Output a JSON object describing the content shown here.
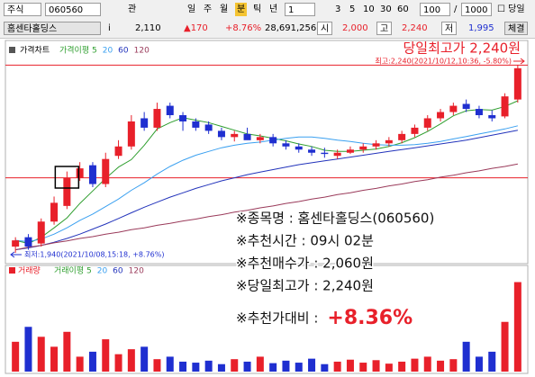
{
  "toolbar": {
    "market": "주식",
    "code": "060560",
    "link": "관",
    "periods": [
      "일",
      "주",
      "월",
      "분",
      "틱",
      "년"
    ],
    "unit": "1",
    "intervals": [
      "3",
      "5",
      "10",
      "30",
      "60"
    ],
    "count": "100",
    "sep": "/",
    "total": "1000",
    "today": "당일"
  },
  "quote": {
    "name": "홈센타홀딩스",
    "info": "i",
    "price": "2,110",
    "change": "▲170",
    "rate": "+8.76%",
    "volume": "28,691,256",
    "open_label": "시",
    "open": "2,000",
    "high_label": "고",
    "high": "2,240",
    "low_label": "저",
    "low": "1,995",
    "tab": "체결"
  },
  "chart_data": [
    {
      "type": "candlestick",
      "title": "가격차트",
      "up_color": "#e8202a",
      "down_color": "#1f2fd0",
      "ylim": [
        1930,
        2275
      ],
      "reference_lines": [
        2240,
        2060
      ],
      "reference_color": "#e8202a",
      "high_label": "당일최고가 2,240원",
      "high_note": "최고:2,240(2021/10/12,10:36, -5.80%)",
      "low_note": "최저:1,940(2021/10/08,15:18, +8.76%)",
      "open": [
        1950,
        1965,
        1955,
        1990,
        2015,
        2060,
        2080,
        2050,
        2095,
        2110,
        2155,
        2140,
        2175,
        2160,
        2150,
        2145,
        2135,
        2125,
        2130,
        2120,
        2125,
        2115,
        2110,
        2105,
        2100,
        2095,
        2100,
        2105,
        2110,
        2115,
        2120,
        2130,
        2140,
        2155,
        2165,
        2178,
        2170,
        2160,
        2158,
        2185
      ],
      "high": [
        1965,
        1970,
        1995,
        2030,
        2070,
        2085,
        2085,
        2100,
        2120,
        2160,
        2165,
        2180,
        2180,
        2165,
        2155,
        2150,
        2140,
        2135,
        2140,
        2130,
        2130,
        2120,
        2115,
        2110,
        2108,
        2105,
        2110,
        2115,
        2120,
        2125,
        2135,
        2145,
        2160,
        2170,
        2180,
        2185,
        2175,
        2168,
        2195,
        2240
      ],
      "low": [
        1940,
        1945,
        1950,
        1985,
        2010,
        2055,
        2045,
        2045,
        2090,
        2105,
        2135,
        2135,
        2155,
        2135,
        2135,
        2130,
        2120,
        2118,
        2122,
        2115,
        2110,
        2105,
        2100,
        2095,
        2092,
        2090,
        2098,
        2100,
        2105,
        2110,
        2115,
        2125,
        2135,
        2150,
        2160,
        2165,
        2155,
        2150,
        2155,
        2180
      ],
      "close": [
        1960,
        1950,
        1990,
        2020,
        2060,
        2075,
        2050,
        2090,
        2110,
        2150,
        2140,
        2170,
        2160,
        2150,
        2140,
        2135,
        2125,
        2130,
        2120,
        2125,
        2115,
        2110,
        2105,
        2100,
        2098,
        2100,
        2105,
        2110,
        2115,
        2120,
        2130,
        2140,
        2155,
        2165,
        2175,
        2170,
        2160,
        2155,
        2190,
        2235
      ],
      "series": [
        {
          "name": "가격이평 5",
          "color": "#2e9e2e",
          "values": [
            1960,
            1955,
            1965,
            1980,
            1996,
            2019,
            2039,
            2059,
            2077,
            2089,
            2112,
            2138,
            2148,
            2156,
            2152,
            2148,
            2142,
            2136,
            2130,
            2127,
            2123,
            2119,
            2114,
            2110,
            2104,
            2102,
            2102,
            2104,
            2106,
            2110,
            2116,
            2124,
            2134,
            2146,
            2159,
            2167,
            2169,
            2168,
            2174,
            2183
          ]
        },
        {
          "name": "20",
          "color": "#3aa0f0",
          "values": [
            1960,
            1958,
            1962,
            1970,
            1980,
            1992,
            2002,
            2014,
            2026,
            2040,
            2052,
            2066,
            2078,
            2088,
            2096,
            2102,
            2108,
            2112,
            2115,
            2117,
            2120,
            2123,
            2125,
            2125,
            2123,
            2120,
            2118,
            2115,
            2113,
            2112,
            2112,
            2113,
            2115,
            2118,
            2122,
            2126,
            2130,
            2134,
            2138,
            2143
          ]
        },
        {
          "name": "60",
          "color": "#2233bb",
          "values": [
            1945,
            1948,
            1952,
            1957,
            1963,
            1970,
            1978,
            1986,
            1995,
            2004,
            2013,
            2021,
            2029,
            2036,
            2043,
            2049,
            2055,
            2060,
            2065,
            2069,
            2073,
            2077,
            2081,
            2084,
            2087,
            2090,
            2093,
            2096,
            2099,
            2102,
            2105,
            2108,
            2111,
            2114,
            2117,
            2120,
            2124,
            2128,
            2132,
            2136
          ]
        },
        {
          "name": "120",
          "color": "#9a3a5a",
          "values": [
            1945,
            1949,
            1952,
            1956,
            1959,
            1963,
            1966,
            1970,
            1973,
            1977,
            1980,
            1984,
            1987,
            1991,
            1994,
            1998,
            2001,
            2005,
            2008,
            2012,
            2015,
            2019,
            2022,
            2026,
            2029,
            2033,
            2036,
            2040,
            2043,
            2047,
            2050,
            2054,
            2057,
            2061,
            2064,
            2068,
            2071,
            2075,
            2078,
            2082
          ]
        }
      ]
    },
    {
      "type": "bar",
      "title": "거래량",
      "legend": [
        {
          "name": "거래이평 5",
          "color": "#2e9e2e"
        },
        {
          "name": "20",
          "color": "#3aa0f0"
        },
        {
          "name": "60",
          "color": "#2233bb"
        },
        {
          "name": "120",
          "color": "#9a3a5a"
        }
      ],
      "ylim": [
        0,
        1900000
      ],
      "values": [
        600000,
        900000,
        700000,
        500000,
        800000,
        300000,
        400000,
        650000,
        350000,
        450000,
        500000,
        250000,
        300000,
        200000,
        180000,
        220000,
        150000,
        250000,
        200000,
        300000,
        170000,
        220000,
        180000,
        260000,
        150000,
        200000,
        240000,
        180000,
        230000,
        160000,
        200000,
        260000,
        300000,
        220000,
        250000,
        600000,
        300000,
        400000,
        1000000,
        1800000
      ]
    }
  ],
  "notes": [
    "※종목명 : 홈센타홀딩스(060560)",
    "※추천시간 : 09시 02분",
    "※추천매수가 : 2,060원",
    "※당일최고가 : 2,240원",
    "※추천가대비 :"
  ],
  "highlight": "+8.36%"
}
